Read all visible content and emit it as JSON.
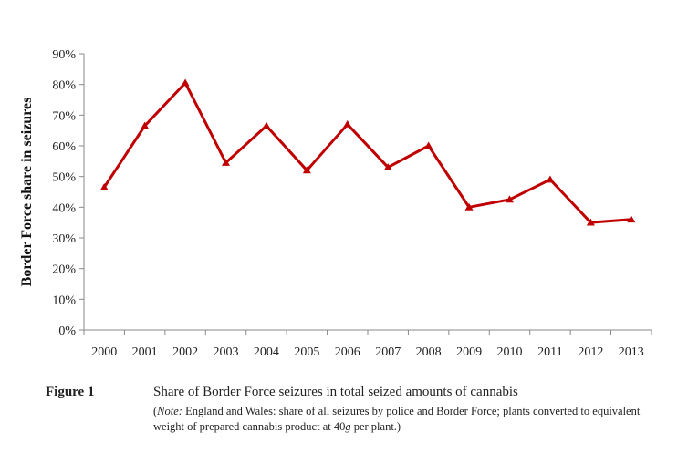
{
  "chart_data": {
    "type": "line",
    "x": [
      "2000",
      "2001",
      "2002",
      "2003",
      "2004",
      "2005",
      "2006",
      "2007",
      "2008",
      "2009",
      "2010",
      "2011",
      "2012",
      "2013"
    ],
    "series": [
      {
        "values": [
          46.5,
          66.5,
          80.5,
          54.5,
          66.5,
          52,
          67,
          53,
          60,
          40,
          42.5,
          49,
          35,
          36
        ]
      }
    ],
    "ylabel": "Border Force share in seizures",
    "xlabel": "",
    "ylim": [
      0,
      90
    ],
    "yticks": [
      0,
      10,
      20,
      30,
      40,
      50,
      60,
      70,
      80,
      90
    ],
    "ytick_labels": [
      "0%",
      "10%",
      "20%",
      "30%",
      "40%",
      "50%",
      "60%",
      "70%",
      "80%",
      "90%"
    ],
    "grid": false,
    "marker": "triangle",
    "line_color": "#c00000"
  },
  "caption": {
    "label": "Figure 1",
    "title": "Share of Border Force seizures in total seized amounts of cannabis",
    "note_open": "(",
    "note_lead": "Note:",
    "note_text": " England and Wales: share of all seizures by police and Border Force; plants converted to equivalent weight of prepared cannabis product at 40",
    "note_unit": "g",
    "note_end": " per plant.)"
  }
}
